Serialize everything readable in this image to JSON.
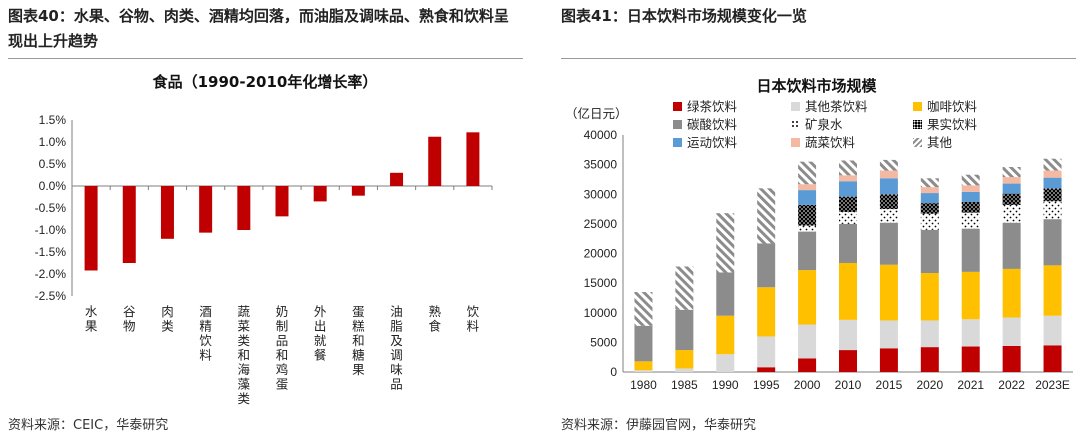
{
  "left": {
    "figure_title": "图表40：水果、谷物、肉类、酒精均回落，而油脂及调味品、熟食和饮料呈现出上升趋势",
    "source": "资料来源：CEIC，华泰研究",
    "chart_data": {
      "type": "bar",
      "title": "食品（1990-2010年化增长率）",
      "categories": [
        "水果",
        "谷物",
        "肉类",
        "酒精饮料",
        "蔬菜类和海藻类",
        "奶制品和鸡蛋",
        "外出就餐",
        "蛋糕和糖果",
        "油脂及调味品",
        "熟食",
        "饮料"
      ],
      "values": [
        -1.92,
        -1.75,
        -1.2,
        -1.06,
        -1.0,
        -0.69,
        -0.35,
        -0.22,
        0.3,
        1.12,
        1.22
      ],
      "yticks": [
        "1.5%",
        "1.0%",
        "0.5%",
        "0.0%",
        "-0.5%",
        "-1.0%",
        "-1.5%",
        "-2.0%",
        "-2.5%"
      ],
      "ylim": [
        -2.5,
        1.5
      ],
      "color": "#C00000"
    }
  },
  "right": {
    "figure_title": "图表41：日本饮料市场规模变化一览",
    "source": "资料来源：伊藤园官网，华泰研究",
    "chart_data": {
      "type": "bar",
      "stacked": true,
      "title": "日本饮料市场规模",
      "unit_label": "（亿日元）",
      "categories": [
        "1980",
        "1985",
        "1990",
        "1995",
        "2000",
        "2010",
        "2015",
        "2020",
        "2021",
        "2022",
        "2023E"
      ],
      "ylim": [
        0,
        40000
      ],
      "yticks": [
        "40000",
        "35000",
        "30000",
        "25000",
        "20000",
        "15000",
        "10000",
        "5000",
        "0"
      ],
      "series": [
        {
          "name": "绿茶饮料",
          "color": "#C00000",
          "pattern": "solid",
          "values": [
            0,
            0,
            0,
            800,
            2300,
            3700,
            4000,
            4200,
            4300,
            4400,
            4500
          ]
        },
        {
          "name": "其他茶饮料",
          "color": "#D9D9D9",
          "pattern": "solid",
          "values": [
            300,
            600,
            3000,
            5200,
            5700,
            5100,
            4700,
            4500,
            4600,
            4800,
            5000
          ]
        },
        {
          "name": "咖啡饮料",
          "color": "#FFC000",
          "pattern": "solid",
          "values": [
            1500,
            3100,
            6500,
            8300,
            9200,
            9600,
            9400,
            8000,
            8000,
            8200,
            8500
          ]
        },
        {
          "name": "碳酸饮料",
          "color": "#8C8C8C",
          "pattern": "solid",
          "values": [
            6000,
            6800,
            7300,
            7400,
            6500,
            6600,
            7100,
            7300,
            7300,
            7800,
            7800
          ]
        },
        {
          "name": "矿泉水",
          "color": "#000000",
          "pattern": "sparse-dots",
          "values": [
            0,
            0,
            0,
            0,
            1000,
            2000,
            2300,
            2700,
            2700,
            3000,
            3000
          ]
        },
        {
          "name": "果实饮料",
          "color": "#000000",
          "pattern": "dense-dots",
          "values": [
            0,
            0,
            0,
            0,
            3500,
            2600,
            2500,
            1800,
            1800,
            1900,
            2200
          ]
        },
        {
          "name": "运动饮料",
          "color": "#5B9BD5",
          "pattern": "solid",
          "values": [
            0,
            0,
            0,
            0,
            2500,
            2600,
            2700,
            1700,
            1700,
            1700,
            1800
          ]
        },
        {
          "name": "蔬菜饮料",
          "color": "#F4B9A3",
          "pattern": "solid",
          "values": [
            0,
            0,
            0,
            0,
            1000,
            1000,
            1300,
            1000,
            1100,
            1100,
            1200
          ]
        },
        {
          "name": "其他",
          "color": "#7F7F7F",
          "pattern": "hatch",
          "values": [
            5700,
            7300,
            10000,
            9300,
            3800,
            2500,
            1800,
            1500,
            1800,
            1700,
            2000
          ]
        }
      ]
    }
  }
}
